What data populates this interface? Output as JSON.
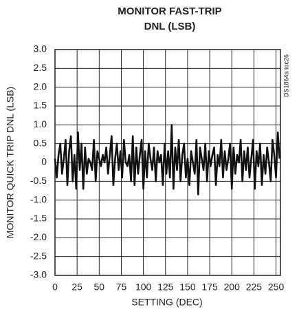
{
  "chart_data": {
    "type": "line",
    "title": [
      "MONITOR FAST-TRIP",
      "DNL (LSB)"
    ],
    "xlabel": "SETTING (DEC)",
    "ylabel": "MONITOR QUICK TRIP DNL (LSB)",
    "note": "DS1864a toc26",
    "x": [
      0,
      2,
      4,
      6,
      8,
      10,
      12,
      14,
      16,
      18,
      20,
      22,
      24,
      26,
      28,
      30,
      32,
      34,
      36,
      38,
      40,
      42,
      44,
      46,
      48,
      50,
      52,
      54,
      56,
      58,
      60,
      62,
      64,
      66,
      68,
      70,
      72,
      74,
      76,
      78,
      80,
      82,
      84,
      86,
      88,
      90,
      92,
      94,
      96,
      98,
      100,
      102,
      104,
      106,
      108,
      110,
      112,
      114,
      116,
      118,
      120,
      122,
      124,
      126,
      128,
      130,
      132,
      134,
      136,
      138,
      140,
      142,
      144,
      146,
      148,
      150,
      152,
      154,
      156,
      158,
      160,
      162,
      164,
      166,
      168,
      170,
      172,
      174,
      176,
      178,
      180,
      182,
      184,
      186,
      188,
      190,
      192,
      194,
      196,
      198,
      200,
      202,
      204,
      206,
      208,
      210,
      212,
      214,
      216,
      218,
      220,
      222,
      224,
      226,
      228,
      230,
      232,
      234,
      236,
      238,
      240,
      242,
      244,
      246,
      248,
      250,
      252,
      254
    ],
    "series": [
      {
        "color": "#111111",
        "values": [
          0.1,
          -0.4,
          0.2,
          0.5,
          -0.3,
          0.1,
          0.6,
          -0.6,
          0.3,
          0.7,
          -0.5,
          0.2,
          -0.7,
          0.8,
          -0.2,
          0.5,
          -0.7,
          0.4,
          -0.3,
          0.1,
          0.0,
          -0.2,
          0.6,
          -0.5,
          0.3,
          0.1,
          -0.1,
          0.2,
          0.0,
          0.4,
          -0.3,
          0.2,
          0.7,
          -0.6,
          0.1,
          0.5,
          -0.2,
          0.3,
          -0.4,
          0.6,
          0.0,
          -0.1,
          0.2,
          -0.5,
          0.7,
          -0.6,
          0.4,
          -0.3,
          0.2,
          0.6,
          -0.7,
          0.3,
          -0.4,
          0.5,
          0.1,
          -0.2,
          0.4,
          -0.5,
          0.3,
          0.0,
          0.2,
          -0.6,
          0.5,
          -0.3,
          0.3,
          -0.4,
          1.0,
          -0.7,
          0.4,
          -0.2,
          0.6,
          -0.5,
          0.2,
          0.5,
          -0.4,
          0.1,
          -0.6,
          0.3,
          0.0,
          -0.3,
          0.6,
          -0.85,
          0.4,
          0.1,
          -0.2,
          0.5,
          -0.5,
          0.3,
          -0.1,
          0.2,
          0.4,
          -0.6,
          0.2,
          -0.1,
          0.6,
          -0.4,
          0.3,
          -0.2,
          0.1,
          0.5,
          -0.7,
          0.4,
          -0.3,
          0.2,
          0.0,
          0.6,
          -0.5,
          0.3,
          -0.2,
          0.4,
          -0.4,
          0.1,
          0.6,
          -0.7,
          0.3,
          -0.1,
          0.5,
          -0.6,
          0.2,
          -0.3,
          0.4,
          0.0,
          -0.5,
          0.6,
          0.2,
          -0.4,
          0.8,
          0.1
        ]
      }
    ],
    "xlim": [
      0,
      255
    ],
    "xticks": [
      0,
      25,
      50,
      75,
      100,
      125,
      150,
      175,
      200,
      225,
      250
    ],
    "ylim": [
      -3,
      3
    ],
    "yticks": [
      {
        "value": 3,
        "label": "3.0"
      },
      2.5,
      {
        "value": 2,
        "label": "2.0"
      },
      1.5,
      {
        "value": 1,
        "label": "1.0"
      },
      0.5,
      0,
      -0.5,
      {
        "value": -1,
        "label": "-1.0"
      },
      -1.5,
      {
        "value": -2,
        "label": "-2.0"
      },
      -2.5,
      {
        "value": -3,
        "label": "-3.0"
      }
    ],
    "grid": true
  }
}
